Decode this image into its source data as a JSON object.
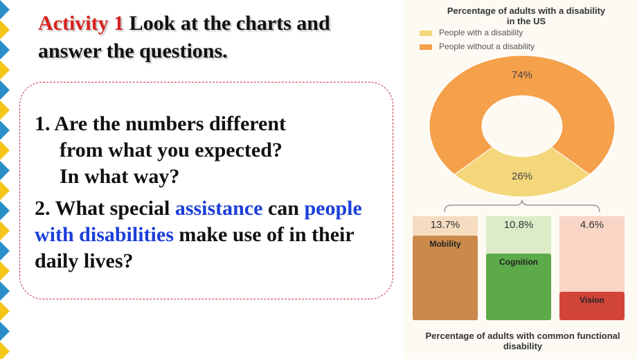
{
  "slide": {
    "heading": {
      "label": "Activity 1",
      "text": "Look at the charts and answer the questions."
    },
    "question1": {
      "number": "1.",
      "lines": [
        "Are the numbers different",
        "from what you expected?",
        "In what way?"
      ]
    },
    "question2": {
      "number": "2.",
      "parts": [
        "What special",
        "assistance",
        "can",
        "people with disabilities",
        "make use of in their daily lives?"
      ]
    }
  },
  "chart_data": [
    {
      "type": "pie",
      "title": "Percentage of adults with a disability in the US",
      "categories": [
        "People with a disability",
        "People without a disability"
      ],
      "values": [
        26,
        74
      ],
      "value_labels": [
        "26%",
        "74%"
      ],
      "colors": [
        "#f4d77a",
        "#f5a04a"
      ]
    },
    {
      "type": "bar",
      "title": "Percentage of adults with common functional disability",
      "categories": [
        "Mobility",
        "Cognition",
        "Vision"
      ],
      "values": [
        13.7,
        10.8,
        4.6
      ],
      "value_labels": [
        "13.7%",
        "10.8%",
        "4.6%"
      ],
      "colors": [
        "#c98a4b",
        "#5caa4a",
        "#d0443a"
      ]
    }
  ]
}
